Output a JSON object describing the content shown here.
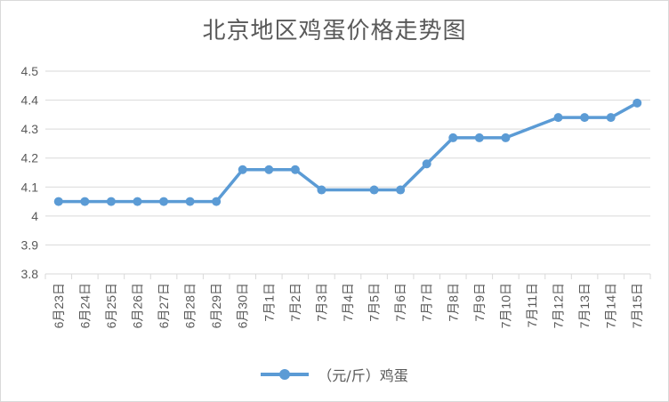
{
  "chart_data": {
    "type": "line",
    "title": "北京地区鸡蛋价格走势图",
    "xlabel": "",
    "ylabel": "",
    "categories": [
      "6月23日",
      "6月24日",
      "6月25日",
      "6月26日",
      "6月27日",
      "6月28日",
      "6月29日",
      "6月30日",
      "7月1日",
      "7月2日",
      "7月3日",
      "7月4日",
      "7月5日",
      "7月6日",
      "7月7日",
      "7月8日",
      "7月9日",
      "7月10日",
      "7月11日",
      "7月12日",
      "7月13日",
      "7月14日",
      "7月15日"
    ],
    "series": [
      {
        "name": "（元/斤）鸡蛋",
        "values": [
          4.05,
          4.05,
          4.05,
          4.05,
          4.05,
          4.05,
          4.05,
          4.16,
          4.16,
          4.16,
          4.09,
          null,
          4.09,
          4.09,
          4.18,
          4.27,
          4.27,
          4.27,
          null,
          4.34,
          4.34,
          4.34,
          4.39
        ],
        "color": "#5b9bd5"
      }
    ],
    "yticks": [
      "3.8",
      "3.9",
      "4",
      "4.1",
      "4.2",
      "4.3",
      "4.4",
      "4.5"
    ],
    "ylim": [
      3.8,
      4.5
    ],
    "grid": true,
    "legend_position": "bottom"
  },
  "colors": {
    "series": "#5b9bd5",
    "grid": "#d9d9d9",
    "text": "#595959"
  }
}
